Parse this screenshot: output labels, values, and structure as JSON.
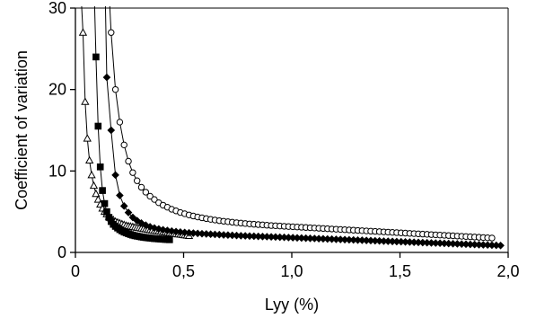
{
  "chart_data": {
    "type": "scatter",
    "title": "",
    "xlabel": "Lyy (%)",
    "ylabel": "Coefficient of variation",
    "xlim": [
      0,
      2.0
    ],
    "ylim": [
      0,
      30
    ],
    "x_ticks": [
      0,
      0.5,
      1.0,
      1.5,
      2.0
    ],
    "x_tick_labels": [
      "0",
      "0,5",
      "1,0",
      "1,5",
      "2,0"
    ],
    "y_ticks": [
      0,
      10,
      20,
      30
    ],
    "y_tick_labels": [
      "0",
      "10",
      "20",
      "30"
    ],
    "grid": false,
    "legend": "none",
    "series": [
      {
        "marker": "open-triangle",
        "color": "#000000",
        "fill": "#ffffff",
        "x": [
          0.035,
          0.045,
          0.055,
          0.065,
          0.075,
          0.085,
          0.095,
          0.105,
          0.115,
          0.125,
          0.135,
          0.145,
          0.155,
          0.165,
          0.175,
          0.185,
          0.195,
          0.205,
          0.215,
          0.225,
          0.235,
          0.245,
          0.255,
          0.265,
          0.275,
          0.285,
          0.295,
          0.305,
          0.315,
          0.325,
          0.335,
          0.345,
          0.355,
          0.365,
          0.375,
          0.385,
          0.395,
          0.405,
          0.415,
          0.425,
          0.435,
          0.445,
          0.455,
          0.465,
          0.475,
          0.485,
          0.495,
          0.505,
          0.515,
          0.525
        ],
        "y": [
          27.0,
          18.5,
          14.0,
          11.3,
          9.5,
          8.2,
          7.2,
          6.5,
          5.9,
          5.4,
          5.0,
          4.7,
          4.4,
          4.2,
          4.0,
          3.8,
          3.7,
          3.6,
          3.5,
          3.4,
          3.3,
          3.25,
          3.2,
          3.15,
          3.1,
          3.05,
          3.0,
          2.95,
          2.9,
          2.85,
          2.8,
          2.76,
          2.72,
          2.68,
          2.64,
          2.6,
          2.56,
          2.52,
          2.48,
          2.44,
          2.4,
          2.36,
          2.32,
          2.28,
          2.24,
          2.2,
          2.16,
          2.12,
          2.08,
          2.04
        ]
      },
      {
        "marker": "filled-square",
        "color": "#000000",
        "fill": "#000000",
        "x": [
          0.095,
          0.105,
          0.115,
          0.125,
          0.135,
          0.145,
          0.155,
          0.165,
          0.175,
          0.185,
          0.195,
          0.205,
          0.215,
          0.225,
          0.235,
          0.245,
          0.255,
          0.265,
          0.275,
          0.285,
          0.295,
          0.305,
          0.315,
          0.325,
          0.335,
          0.345,
          0.355,
          0.365,
          0.375,
          0.385,
          0.395,
          0.405,
          0.415,
          0.425,
          0.435
        ],
        "y": [
          24.0,
          15.5,
          10.5,
          7.6,
          6.0,
          5.0,
          4.3,
          3.8,
          3.45,
          3.2,
          3.0,
          2.8,
          2.65,
          2.5,
          2.4,
          2.3,
          2.2,
          2.12,
          2.05,
          2.0,
          1.95,
          1.9,
          1.86,
          1.82,
          1.79,
          1.76,
          1.73,
          1.7,
          1.68,
          1.66,
          1.64,
          1.62,
          1.6,
          1.58,
          1.56
        ]
      },
      {
        "marker": "filled-diamond",
        "color": "#000000",
        "fill": "#000000",
        "x": [
          0.145,
          0.165,
          0.185,
          0.205,
          0.225,
          0.245,
          0.265,
          0.285,
          0.305,
          0.325,
          0.345,
          0.365,
          0.385,
          0.405,
          0.425,
          0.445,
          0.465,
          0.485,
          0.505,
          0.525,
          0.545,
          0.565,
          0.585,
          0.605,
          0.625,
          0.645,
          0.665,
          0.685,
          0.705,
          0.725,
          0.745,
          0.765,
          0.785,
          0.805,
          0.825,
          0.845,
          0.865,
          0.885,
          0.905,
          0.925,
          0.945,
          0.965,
          0.985,
          1.005,
          1.025,
          1.045,
          1.065,
          1.085,
          1.105,
          1.125,
          1.145,
          1.165,
          1.185,
          1.205,
          1.225,
          1.245,
          1.265,
          1.285,
          1.305,
          1.325,
          1.345,
          1.365,
          1.385,
          1.405,
          1.425,
          1.445,
          1.465,
          1.485,
          1.505,
          1.525,
          1.545,
          1.565,
          1.585,
          1.605,
          1.625,
          1.645,
          1.665,
          1.685,
          1.705,
          1.725,
          1.745,
          1.765,
          1.785,
          1.805,
          1.825,
          1.845,
          1.865,
          1.885,
          1.905,
          1.925,
          1.945,
          1.965
        ],
        "y": [
          21.5,
          15.0,
          9.5,
          7.0,
          5.7,
          4.9,
          4.3,
          3.9,
          3.6,
          3.35,
          3.15,
          3.0,
          2.88,
          2.78,
          2.7,
          2.62,
          2.56,
          2.5,
          2.45,
          2.41,
          2.37,
          2.33,
          2.3,
          2.27,
          2.24,
          2.21,
          2.18,
          2.15,
          2.13,
          2.1,
          2.08,
          2.05,
          2.03,
          2.01,
          1.99,
          1.97,
          1.95,
          1.93,
          1.91,
          1.89,
          1.87,
          1.85,
          1.83,
          1.81,
          1.79,
          1.77,
          1.75,
          1.73,
          1.71,
          1.69,
          1.67,
          1.65,
          1.63,
          1.61,
          1.59,
          1.57,
          1.55,
          1.53,
          1.51,
          1.49,
          1.47,
          1.45,
          1.43,
          1.41,
          1.39,
          1.37,
          1.35,
          1.33,
          1.31,
          1.29,
          1.27,
          1.25,
          1.23,
          1.21,
          1.19,
          1.17,
          1.15,
          1.13,
          1.11,
          1.09,
          1.07,
          1.05,
          1.03,
          1.01,
          0.99,
          0.97,
          0.95,
          0.93,
          0.91,
          0.89,
          0.87,
          0.85
        ]
      },
      {
        "marker": "open-circle",
        "color": "#000000",
        "fill": "#ffffff",
        "x": [
          0.165,
          0.185,
          0.205,
          0.225,
          0.245,
          0.265,
          0.285,
          0.305,
          0.325,
          0.345,
          0.365,
          0.385,
          0.405,
          0.425,
          0.445,
          0.465,
          0.485,
          0.505,
          0.525,
          0.545,
          0.565,
          0.585,
          0.605,
          0.625,
          0.645,
          0.665,
          0.685,
          0.705,
          0.725,
          0.745,
          0.765,
          0.785,
          0.805,
          0.825,
          0.845,
          0.865,
          0.885,
          0.905,
          0.925,
          0.945,
          0.965,
          0.985,
          1.005,
          1.025,
          1.045,
          1.065,
          1.085,
          1.105,
          1.125,
          1.145,
          1.165,
          1.185,
          1.205,
          1.225,
          1.245,
          1.265,
          1.285,
          1.305,
          1.325,
          1.345,
          1.365,
          1.385,
          1.405,
          1.425,
          1.445,
          1.465,
          1.485,
          1.505,
          1.525,
          1.545,
          1.565,
          1.585,
          1.605,
          1.625,
          1.645,
          1.665,
          1.685,
          1.705,
          1.725,
          1.745,
          1.765,
          1.785,
          1.805,
          1.825,
          1.845,
          1.865,
          1.885,
          1.905,
          1.925
        ],
        "y": [
          27.0,
          20.0,
          16.0,
          13.2,
          11.2,
          9.8,
          8.8,
          8.0,
          7.4,
          6.9,
          6.5,
          6.1,
          5.8,
          5.55,
          5.3,
          5.1,
          4.9,
          4.75,
          4.6,
          4.47,
          4.35,
          4.25,
          4.15,
          4.06,
          3.98,
          3.9,
          3.83,
          3.77,
          3.71,
          3.65,
          3.6,
          3.55,
          3.5,
          3.46,
          3.42,
          3.38,
          3.34,
          3.3,
          3.27,
          3.24,
          3.21,
          3.18,
          3.15,
          3.12,
          3.09,
          3.06,
          3.03,
          3.0,
          2.97,
          2.94,
          2.91,
          2.88,
          2.85,
          2.82,
          2.79,
          2.76,
          2.73,
          2.7,
          2.67,
          2.64,
          2.61,
          2.58,
          2.55,
          2.52,
          2.49,
          2.46,
          2.43,
          2.4,
          2.37,
          2.34,
          2.31,
          2.28,
          2.25,
          2.22,
          2.19,
          2.16,
          2.13,
          2.1,
          2.07,
          2.04,
          2.01,
          1.98,
          1.95,
          1.92,
          1.89,
          1.86,
          1.83,
          1.8,
          1.77
        ]
      }
    ]
  }
}
